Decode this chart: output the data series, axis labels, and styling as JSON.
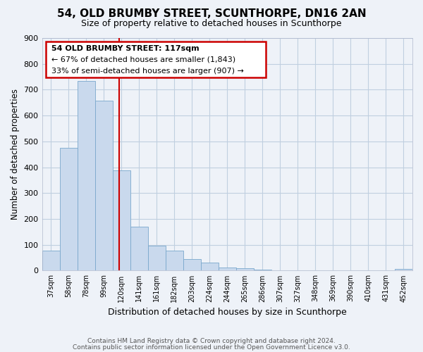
{
  "title": "54, OLD BRUMBY STREET, SCUNTHORPE, DN16 2AN",
  "subtitle": "Size of property relative to detached houses in Scunthorpe",
  "xlabel": "Distribution of detached houses by size in Scunthorpe",
  "ylabel": "Number of detached properties",
  "bar_labels": [
    "37sqm",
    "58sqm",
    "78sqm",
    "99sqm",
    "120sqm",
    "141sqm",
    "161sqm",
    "182sqm",
    "203sqm",
    "224sqm",
    "244sqm",
    "265sqm",
    "286sqm",
    "307sqm",
    "327sqm",
    "348sqm",
    "369sqm",
    "390sqm",
    "410sqm",
    "431sqm",
    "452sqm"
  ],
  "bar_values": [
    77,
    475,
    733,
    657,
    388,
    171,
    97,
    77,
    45,
    32,
    12,
    8,
    4,
    2,
    0,
    0,
    0,
    0,
    0,
    0,
    7
  ],
  "bar_color": "#c9d9ed",
  "bar_edge_color": "#7aa8cc",
  "vline_x": 3.86,
  "vline_color": "#cc0000",
  "annotation_title": "54 OLD BRUMBY STREET: 117sqm",
  "annotation_line1": "← 67% of detached houses are smaller (1,843)",
  "annotation_line2": "33% of semi-detached houses are larger (907) →",
  "annotation_box_color": "#cc0000",
  "ylim": [
    0,
    900
  ],
  "yticks": [
    0,
    100,
    200,
    300,
    400,
    500,
    600,
    700,
    800,
    900
  ],
  "grid_color": "#c0cfe0",
  "footer_line1": "Contains HM Land Registry data © Crown copyright and database right 2024.",
  "footer_line2": "Contains public sector information licensed under the Open Government Licence v3.0.",
  "bg_color": "#eef2f8"
}
